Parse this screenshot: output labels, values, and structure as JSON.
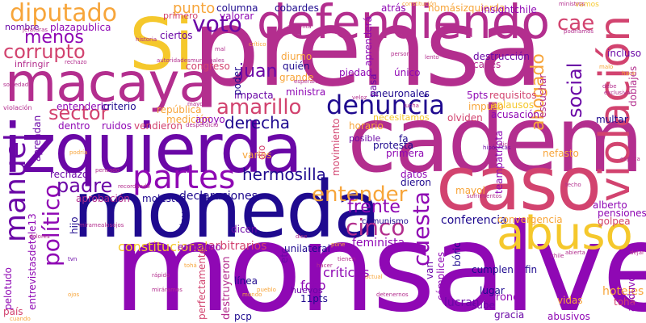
{
  "background": "#ffffff",
  "palette": [
    "#1f0a8f",
    "#6a07a6",
    "#8f08b4",
    "#b32e8e",
    "#d2436f",
    "#e86a4e",
    "#f7a53a",
    "#f5c82c",
    "#ffe14a"
  ],
  "words": {
    "monsalve": "monsalve",
    "prensa": "prensa",
    "cadem": "cadem",
    "moneda": "moneda",
    "izquierda": "izquierda",
    "caso": "caso",
    "macaya": "macaya",
    "defendiendo": "defendiendo",
    "si": "Si",
    "abuso": "abuso",
    "violacion": "violación",
    "partes": "partes",
    "denuncia": "denuncia",
    "manuel": "manuel",
    "diputado": "diputado",
    "politico": "político",
    "voto": "voto",
    "cinco": "cinco",
    "cuesta": "cuesta",
    "amarillo": "amarillo",
    "entender": "entender",
    "corrupto": "corrupto",
    "menos": "menos",
    "sector": "sector",
    "padre": "padre",
    "cae": "cae",
    "social": "social",
    "abogado": "abogado",
    "frente": "frente",
    "hermosilla": "hermosilla",
    "derecha": "derecha",
    "juan": "juan",
    "punto": "punto",
    "constitucional": "constitucional",
    "criticas": "críticas",
    "declaraciones": "declaraciones",
    "conferencia": "conferencia",
    "feminista": "feminista",
    "arbitrarios": "arbitrarios",
    "unilateral": "unilateral",
    "perfectamente": "perfectamente",
    "aprendan": "aprendan",
    "entrevistasdetele13": "entrevistasdetele13",
    "pelotudo": "pelotudo",
    "destruyeron": "destruyeron",
    "teampatriota": "teampatriota",
    "molestos": "molestos",
    "aprobacion": "aprobación",
    "rechazo": "rechazo",
    "ruidos": "ruidos",
    "vendieron": "vendieron",
    "republica": "república",
    "dentro": "dentro",
    "movimiento": "movimiento",
    "escuchar": "escuchar",
    "nefasto": "nefasto",
    "acusacion": "acusación",
    "impuso": "impuso",
    "multar": "multar",
    "pensiones": "pensiones",
    "golpea": "golpea",
    "alberto": "alberto",
    "convergencia": "convergencia",
    "gracia": "gracia",
    "abusivos": "abusivos",
    "hoteles": "hoteles",
    "toha_big": "tohá",
    "anduvo": "anduvo",
    "zorrones": "zorrones",
    "lucran": "lucran",
    "vidas": "vidas",
    "sube": "sube",
    "lugar": "lugar",
    "van": "van",
    "fin": "fin",
    "cumplen": "cumplen",
    "complices": "cómplices",
    "boric": "bóric",
    "huevos": "huevos",
    "pcp": "pcp",
    "linea": "línea",
    "foto": "foto",
    "pts11": "11pts",
    "embargo": "embargo",
    "dicen": "dicen",
    "comunismo": "comunismo",
    "dieron": "dieron",
    "datos": "datos",
    "mayol": "mayol",
    "posible": "posible",
    "protesta": "protesta",
    "primera": "primera",
    "fa": "fa",
    "horario": "horario",
    "aneuronales": "aneuronales",
    "necesitamos": "necesitamos",
    "olviden": "olviden",
    "pts5": "5pts",
    "requisitos": "requisitos",
    "aplausos": "aplausos",
    "destruccion": "destrucción",
    "calles": "calles",
    "incluso": "incluso",
    "unico": "único",
    "pasa": "pasa",
    "piedad": "piedad",
    "quien": "quién",
    "grande": "grande",
    "ministra": "ministra",
    "impacta": "impacta",
    "entenderlo": "entenderlo",
    "criterio": "criterio",
    "medicion": "medición",
    "apoyo": "apoyo",
    "varios": "varios",
    "hijo": "hijo",
    "ley": "ley",
    "dio": "dio",
    "congreso": "congreso",
    "diurno": "diurno",
    "columna": "columna",
    "valorar": "valorar",
    "cobardes": "cobardes",
    "atras": "atrás",
    "nomasizquierda": "nomásizquierda",
    "insightchile": "insightchile",
    "aprendera": "aprenderá",
    "primero": "primero",
    "ciertos": "ciertos",
    "plazapublica": "plazapublica",
    "nombre": "nombre",
    "infringir": "infringir",
    "poder": "poder",
    "pais": "país",
    "vamos": "vamos",
    "ministros": "ministros",
    "podriamos": "podríamos",
    "doblajes": "doblajes",
    "violacion_small": "violación",
    "tvn": "tvn",
    "ojos": "ojos",
    "rapido": "rápido",
    "miraramos": "miráramos",
    "toha_small": "tohá",
    "pueblo": "pueblo",
    "etc": "etc",
    "cuando": "cuando",
    "dolores": "dolores",
    "sociedad": "sociedad",
    "constitucion": "constitución",
    "jefaturas": "jefaturas",
    "historia": "historia",
    "mayor": "mayor",
    "podria": "podría",
    "pensado": "pensado",
    "recordando": "recordando",
    "explica": "explica",
    "dejar": "dejar",
    "techo": "techo",
    "hipocritas": "hipócritas",
    "persona": "persona",
    "lento": "lento",
    "veloz": "veloz",
    "lucha": "lucha",
    "nicolas": "nicolás",
    "sufrimientos": "sufrimientos",
    "detenernos": "detenernos",
    "mundo": "mundo",
    "hacer": "hacer",
    "actual": "actual",
    "tienen": "tienen",
    "debe": "debe",
    "exclusivo": "exclusivo",
    "hace": "hace",
    "malo": "malo",
    "desperdicio": "desperdicio",
    "esperando": "esperando",
    "autoridadesmunicipales": "autoridadesmunicipales",
    "rechazo_small": "rechazo",
    "enfrenta": "enfrenta",
    "critico": "crítico",
    "mal": "mal",
    "abierta": "abierta",
    "miramealosojos": "miramealosojos",
    "chile": "chile",
    "dice": "dice",
    "pone": "pone"
  }
}
